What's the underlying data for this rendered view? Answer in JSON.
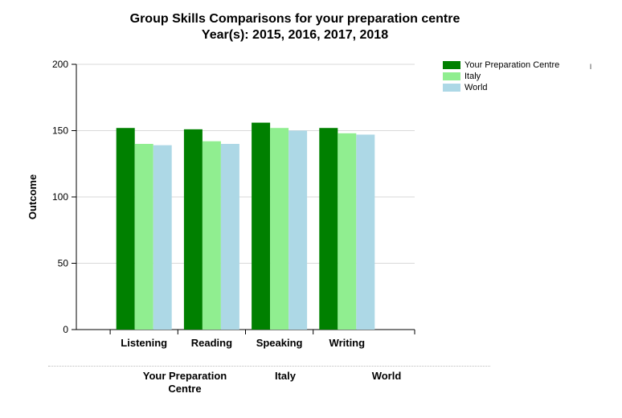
{
  "chart_data": {
    "type": "bar",
    "title": "Group Skills Comparisons for your preparation centre",
    "subtitle": "Year(s): 2015, 2016, 2017, 2018",
    "ylabel": "Outcome",
    "xlabel": "",
    "categories": [
      "Listening",
      "Reading",
      "Speaking",
      "Writing"
    ],
    "series": [
      {
        "name": "Your Preparation Centre",
        "color": "#008000",
        "values": [
          152,
          151,
          156,
          152
        ]
      },
      {
        "name": "Italy",
        "color": "#90EE90",
        "values": [
          140,
          142,
          152,
          148
        ]
      },
      {
        "name": "World",
        "color": "#ADD8E6",
        "values": [
          139,
          140,
          150,
          147
        ]
      }
    ],
    "ylim": [
      0,
      200
    ],
    "yticks": [
      0,
      50,
      100,
      150,
      200
    ],
    "grid": true,
    "legend_position": "top-right"
  },
  "footer": {
    "labels": [
      "Your Preparation\nCentre",
      "Italy",
      "World"
    ]
  },
  "side_mark": "l"
}
